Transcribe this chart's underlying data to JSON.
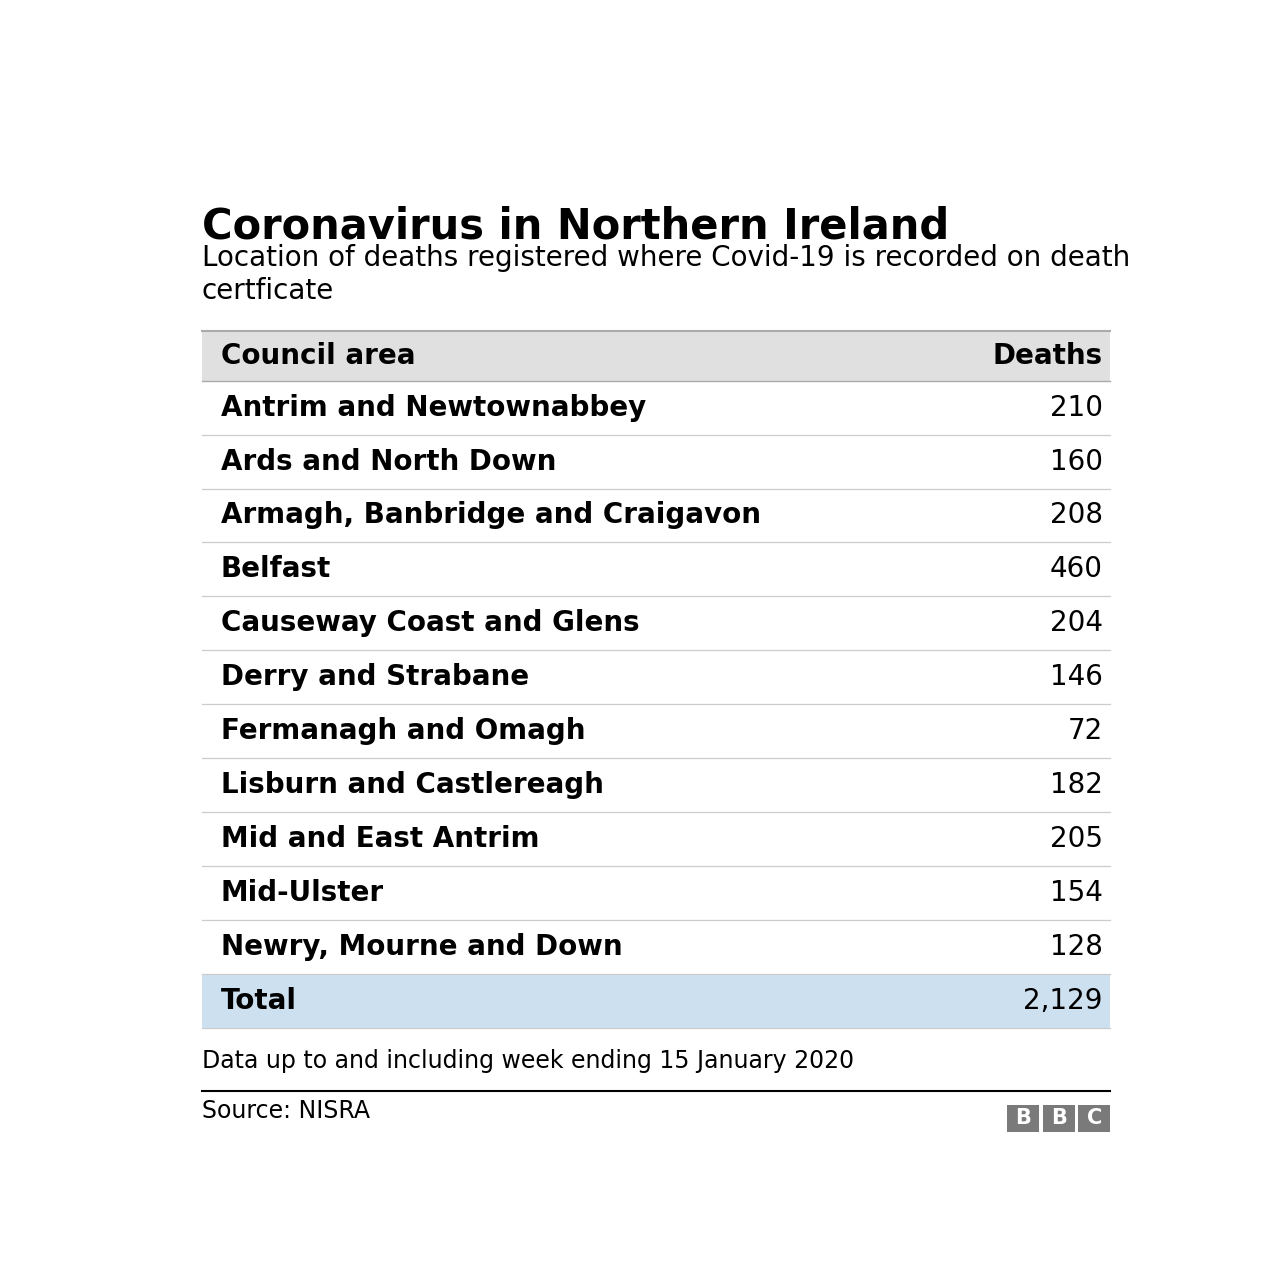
{
  "title": "Coronavirus in Northern Ireland",
  "subtitle": "Location of deaths registered where Covid-19 is recorded on death\ncertficate",
  "col_header": [
    "Council area",
    "Deaths"
  ],
  "rows": [
    [
      "Antrim and Newtownabbey",
      "210"
    ],
    [
      "Ards and North Down",
      "160"
    ],
    [
      "Armagh, Banbridge and Craigavon",
      "208"
    ],
    [
      "Belfast",
      "460"
    ],
    [
      "Causeway Coast and Glens",
      "204"
    ],
    [
      "Derry and Strabane",
      "146"
    ],
    [
      "Fermanagh and Omagh",
      "72"
    ],
    [
      "Lisburn and Castlereagh",
      "182"
    ],
    [
      "Mid and East Antrim",
      "205"
    ],
    [
      "Mid-Ulster",
      "154"
    ],
    [
      "Newry, Mourne and Down",
      "128"
    ]
  ],
  "total_label": "Total",
  "total_value": "2,129",
  "footer_note": "Data up to and including week ending 15 January 2020",
  "source": "Source: NISRA",
  "header_bg": "#e0e0e0",
  "total_bg": "#cce0f0",
  "row_bg": "#ffffff",
  "divider_color": "#cccccc",
  "text_color": "#000000",
  "title_fontsize": 30,
  "subtitle_fontsize": 20,
  "header_fontsize": 20,
  "row_fontsize": 20,
  "footer_fontsize": 17,
  "bbc_box_color": "#7a7a7a",
  "bbc_text_color": "#ffffff",
  "bbc_fontsize": 15
}
